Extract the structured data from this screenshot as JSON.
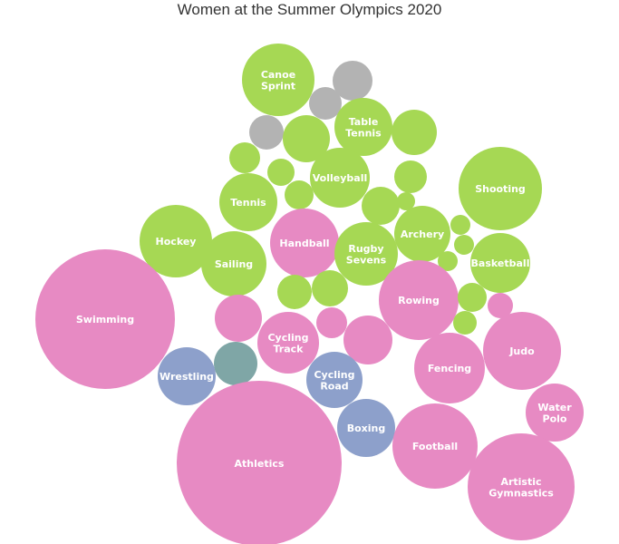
{
  "colors": {
    "green": "#a6d854",
    "pink": "#e78ac3",
    "blue": "#8da0cb",
    "grey": "#b3b3b3",
    "teal": "#7fa6a6"
  },
  "chart_data": {
    "type": "bubble",
    "title": "Women at the Summer Olympics 2020",
    "bubbles": [
      {
        "label": [
          "Canoe",
          "Sprint"
        ],
        "color": "green"
      },
      {
        "label": [],
        "color": "grey"
      },
      {
        "label": [],
        "color": "grey"
      },
      {
        "label": [],
        "color": "grey"
      },
      {
        "label": [
          "Table",
          "Tennis"
        ],
        "color": "green"
      },
      {
        "label": [],
        "color": "green"
      },
      {
        "label": [],
        "color": "green"
      },
      {
        "label": [],
        "color": "green"
      },
      {
        "label": [
          "Volleyball"
        ],
        "color": "green"
      },
      {
        "label": [],
        "color": "green"
      },
      {
        "label": [],
        "color": "green"
      },
      {
        "label": [
          "Tennis"
        ],
        "color": "green"
      },
      {
        "label": [],
        "color": "green"
      },
      {
        "label": [
          "Shooting"
        ],
        "color": "green"
      },
      {
        "label": [],
        "color": "green"
      },
      {
        "label": [],
        "color": "green"
      },
      {
        "label": [
          "Archery"
        ],
        "color": "green"
      },
      {
        "label": [
          "Hockey"
        ],
        "color": "green"
      },
      {
        "label": [
          "Handball"
        ],
        "color": "pink"
      },
      {
        "label": [
          "Rugby",
          "Sevens"
        ],
        "color": "green"
      },
      {
        "label": [
          "Sailing"
        ],
        "color": "green"
      },
      {
        "label": [],
        "color": "green"
      },
      {
        "label": [],
        "color": "green"
      },
      {
        "label": [],
        "color": "green"
      },
      {
        "label": [
          "Basketball"
        ],
        "color": "green"
      },
      {
        "label": [],
        "color": "green"
      },
      {
        "label": [],
        "color": "green"
      },
      {
        "label": [
          "Rowing"
        ],
        "color": "pink"
      },
      {
        "label": [],
        "color": "green"
      },
      {
        "label": [],
        "color": "pink"
      },
      {
        "label": [],
        "color": "green"
      },
      {
        "label": [
          "Swimming"
        ],
        "color": "pink"
      },
      {
        "label": [],
        "color": "pink"
      },
      {
        "label": [],
        "color": "pink"
      },
      {
        "label": [
          "Cycling",
          "Track"
        ],
        "color": "pink"
      },
      {
        "label": [],
        "color": "pink"
      },
      {
        "label": [
          "Judo"
        ],
        "color": "pink"
      },
      {
        "label": [],
        "color": "teal"
      },
      {
        "label": [
          "Wrestling"
        ],
        "color": "blue"
      },
      {
        "label": [
          "Cycling",
          "Road"
        ],
        "color": "blue"
      },
      {
        "label": [
          "Fencing"
        ],
        "color": "pink"
      },
      {
        "label": [
          "Water",
          "Polo"
        ],
        "color": "pink"
      },
      {
        "label": [
          "Boxing"
        ],
        "color": "blue"
      },
      {
        "label": [
          "Football"
        ],
        "color": "pink"
      },
      {
        "label": [
          "Athletics"
        ],
        "color": "pink"
      },
      {
        "label": [
          "Artistic",
          "Gymnastics"
        ],
        "color": "pink"
      }
    ]
  }
}
